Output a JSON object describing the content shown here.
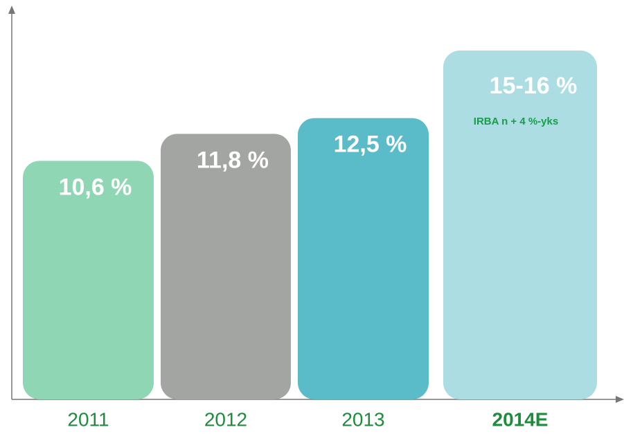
{
  "chart_data": {
    "type": "bar",
    "categories": [
      "2011",
      "2012",
      "2013",
      "2014E"
    ],
    "values": [
      10.6,
      11.8,
      12.5,
      15.5
    ],
    "value_labels": [
      "10,6 %",
      "11,8 %",
      "12,5 %",
      "15-16 %"
    ],
    "colors": [
      "#8fd6b4",
      "#a3a5a2",
      "#5bbcc9",
      "#abdde2"
    ],
    "annotation": "IRBA  n + 4 %-yks",
    "ylim": [
      0,
      17.5
    ]
  }
}
